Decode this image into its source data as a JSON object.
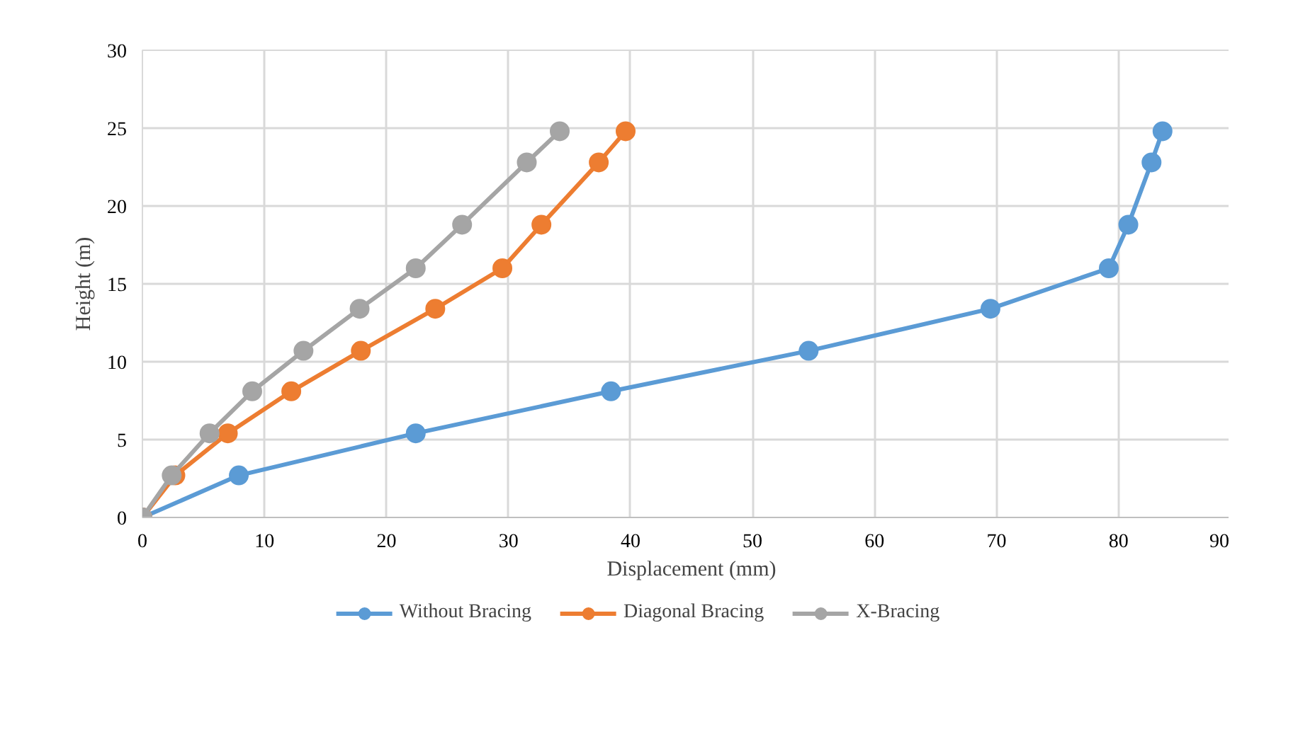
{
  "chart_data": {
    "type": "line",
    "xlabel": "Displacement (mm)",
    "ylabel": "Height (m)",
    "xlim": [
      0,
      90
    ],
    "xticks": [
      0,
      10,
      20,
      30,
      40,
      50,
      60,
      70,
      80,
      90
    ],
    "ylim": [
      0,
      30
    ],
    "yticks": [
      0,
      5,
      10,
      15,
      20,
      25,
      30
    ],
    "grid": true,
    "legend": "bottom",
    "marker": "circle",
    "line_style": "solid",
    "series": [
      {
        "name": "Without Bracing",
        "color": "#5b9bd5",
        "x": [
          0,
          7.9,
          22.4,
          38.4,
          54.6,
          69.5,
          79.2,
          80.8,
          82.7,
          83.6
        ],
        "values": [
          0,
          2.7,
          5.4,
          8.1,
          10.7,
          13.4,
          16,
          18.8,
          22.8,
          24.8
        ]
      },
      {
        "name": "Diagonal Bracing",
        "color": "#ed7d31",
        "x": [
          0,
          2.7,
          7.0,
          12.2,
          17.9,
          24.0,
          29.5,
          32.7,
          37.4,
          39.6
        ],
        "values": [
          0,
          2.7,
          5.4,
          8.1,
          10.7,
          13.4,
          16,
          18.8,
          22.8,
          24.8
        ]
      },
      {
        "name": "X-Bracing",
        "color": "#a5a5a5",
        "x": [
          0,
          2.4,
          5.5,
          9.0,
          13.2,
          17.8,
          22.4,
          26.2,
          31.5,
          34.2
        ],
        "values": [
          0,
          2.7,
          5.4,
          8.1,
          10.7,
          13.4,
          16,
          18.8,
          22.8,
          24.8
        ]
      }
    ]
  }
}
